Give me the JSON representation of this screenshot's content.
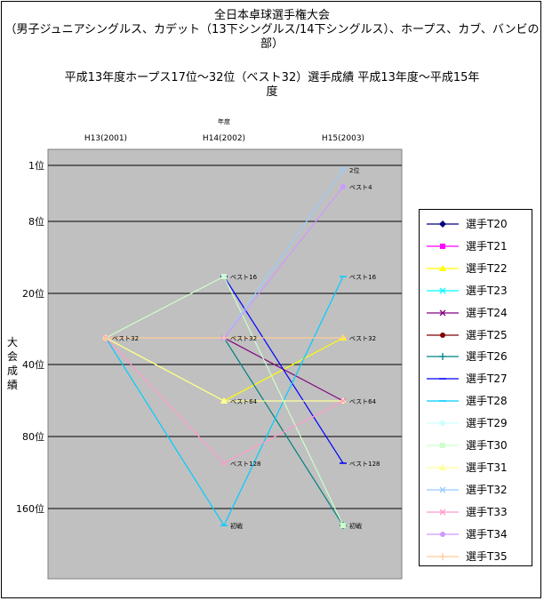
{
  "title": {
    "line1": "全日本卓球選手権大会",
    "line2": "（男子ジュニアシングルス、カデット（13下シングルス/14下シングルス）、ホープス、カブ、バンビの",
    "line3": "部）",
    "line4": "平成13年度ホープス17位～32位（ベスト32）選手成績 平成13年度～平成15年",
    "line5": "度"
  },
  "chart_data": {
    "type": "line",
    "title": "平成13年度ホープス17位～32位（ベスト32）選手成績 平成13年度～平成15年度",
    "xlabel": "年度",
    "ylabel": "大会成績",
    "categories": [
      "H13(2001)",
      "H14(2002)",
      "H15(2003)"
    ],
    "yticks": [
      {
        "value": 1,
        "label": "1位"
      },
      {
        "value": 8,
        "label": "8位"
      },
      {
        "value": 20,
        "label": "20位"
      },
      {
        "value": 40,
        "label": "40位"
      },
      {
        "value": 80,
        "label": "80位"
      },
      {
        "value": 160,
        "label": "160位"
      }
    ],
    "y_scale": "log",
    "y_reversed": true,
    "grid": true,
    "legend_position": "right",
    "plot_background": "#c0c0c0",
    "point_labels": [
      {
        "category": 0,
        "value": 32,
        "text": "ベスト32"
      },
      {
        "category": 1,
        "value": 16,
        "text": "ベスト16"
      },
      {
        "category": 1,
        "value": 32,
        "text": "ベスト32"
      },
      {
        "category": 1,
        "value": 64,
        "text": "ベスト64"
      },
      {
        "category": 1,
        "value": 128,
        "text": "ベスト128"
      },
      {
        "category": 1,
        "value": 256,
        "text": "初戦"
      },
      {
        "category": 2,
        "value": 2,
        "text": "2位"
      },
      {
        "category": 2,
        "value": 4,
        "text": "ベスト4"
      },
      {
        "category": 2,
        "value": 16,
        "text": "ベスト16"
      },
      {
        "category": 2,
        "value": 32,
        "text": "ベスト32"
      },
      {
        "category": 2,
        "value": 64,
        "text": "ベスト64"
      },
      {
        "category": 2,
        "value": 128,
        "text": "ベスト128"
      },
      {
        "category": 2,
        "value": 256,
        "text": "初戦"
      }
    ],
    "series": [
      {
        "name": "選手T20",
        "color": "#000080",
        "marker": "diamond",
        "values": [
          null,
          null,
          null
        ]
      },
      {
        "name": "選手T21",
        "color": "#ff00ff",
        "marker": "square",
        "values": [
          null,
          null,
          null
        ]
      },
      {
        "name": "選手T22",
        "color": "#ffff00",
        "marker": "triangle",
        "values": [
          32,
          64,
          32
        ]
      },
      {
        "name": "選手T23",
        "color": "#00ffff",
        "marker": "x",
        "values": [
          null,
          null,
          null
        ]
      },
      {
        "name": "選手T24",
        "color": "#800080",
        "marker": "x",
        "values": [
          null,
          32,
          64
        ]
      },
      {
        "name": "選手T25",
        "color": "#800000",
        "marker": "circle",
        "values": [
          null,
          null,
          null
        ]
      },
      {
        "name": "選手T26",
        "color": "#008080",
        "marker": "plus",
        "values": [
          null,
          32,
          256
        ]
      },
      {
        "name": "選手T27",
        "color": "#0000ff",
        "marker": "dash",
        "values": [
          null,
          16,
          128
        ]
      },
      {
        "name": "選手T28",
        "color": "#00ccff",
        "marker": "dash",
        "values": [
          32,
          256,
          16
        ]
      },
      {
        "name": "選手T29",
        "color": "#ccffff",
        "marker": "circle",
        "values": [
          null,
          null,
          null
        ]
      },
      {
        "name": "選手T30",
        "color": "#ccffcc",
        "marker": "square",
        "values": [
          32,
          16,
          256
        ]
      },
      {
        "name": "選手T31",
        "color": "#ffff99",
        "marker": "triangle",
        "values": [
          32,
          64,
          64
        ]
      },
      {
        "name": "選手T32",
        "color": "#99ccff",
        "marker": "x",
        "values": [
          null,
          32,
          2
        ]
      },
      {
        "name": "選手T33",
        "color": "#ff99cc",
        "marker": "x",
        "values": [
          32,
          128,
          64
        ]
      },
      {
        "name": "選手T34",
        "color": "#cc99ff",
        "marker": "circle",
        "values": [
          null,
          32,
          4
        ]
      },
      {
        "name": "選手T35",
        "color": "#ffcc99",
        "marker": "plus",
        "values": [
          32,
          32,
          32
        ]
      }
    ]
  }
}
